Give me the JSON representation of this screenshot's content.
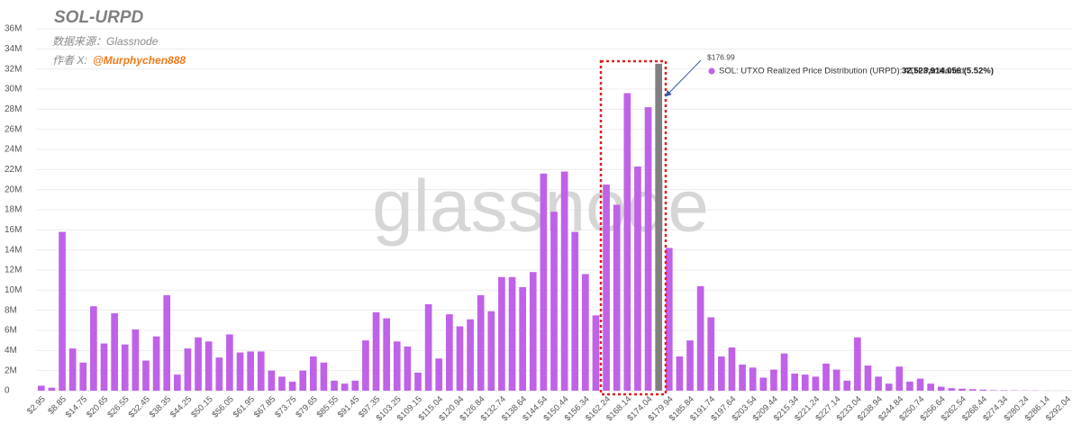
{
  "chart_data": {
    "type": "bar",
    "title": "SOL-URPD",
    "subtitle": "数据来源：Glassnode",
    "author_prefix": "作者 X:",
    "author_handle": "@Murphychen888",
    "watermark": "glassnode",
    "color": "#bf62e8",
    "highlight_color": "#808080",
    "grid": true,
    "ylim": [
      0,
      36000000
    ],
    "yticks": [
      0,
      {
        "value": 2000000,
        "label": "2M"
      },
      {
        "value": 4000000,
        "label": "4M"
      },
      {
        "value": 6000000,
        "label": "6M"
      },
      {
        "value": 8000000,
        "label": "8M"
      },
      {
        "value": 10000000,
        "label": "10M"
      },
      {
        "value": 12000000,
        "label": "12M"
      },
      {
        "value": 14000000,
        "label": "14M"
      },
      {
        "value": 16000000,
        "label": "16M"
      },
      {
        "value": 18000000,
        "label": "18M"
      },
      {
        "value": 20000000,
        "label": "20M"
      },
      {
        "value": 22000000,
        "label": "22M"
      },
      {
        "value": 24000000,
        "label": "24M"
      },
      {
        "value": 26000000,
        "label": "26M"
      },
      {
        "value": 28000000,
        "label": "28M"
      },
      {
        "value": 30000000,
        "label": "30M"
      },
      {
        "value": 32000000,
        "label": "32M"
      },
      {
        "value": 34000000,
        "label": "34M"
      },
      {
        "value": 36000000,
        "label": "36M"
      }
    ],
    "categories": [
      "$2.95",
      null,
      "$8.85",
      null,
      "$14.75",
      null,
      "$20.65",
      null,
      "$26.55",
      null,
      "$32.45",
      null,
      "$38.35",
      null,
      "$44.25",
      null,
      "$50.15",
      null,
      "$56.05",
      null,
      "$61.95",
      null,
      "$67.85",
      null,
      "$73.75",
      null,
      "$79.65",
      null,
      "$85.55",
      null,
      "$91.45",
      null,
      "$97.35",
      null,
      "$103.25",
      null,
      "$109.15",
      null,
      "$115.04",
      null,
      "$120.94",
      null,
      "$126.84",
      null,
      "$132.74",
      null,
      "$138.64",
      null,
      "$144.54",
      null,
      "$150.44",
      null,
      "$156.34",
      null,
      "$162.24",
      null,
      "$168.14",
      null,
      "$174.04",
      null,
      "$179.94",
      null,
      "$185.84",
      null,
      "$191.74",
      null,
      "$197.64",
      null,
      "$203.54",
      null,
      "$209.44",
      null,
      "$215.34",
      null,
      "$221.24",
      null,
      "$227.14",
      null,
      "$233.04",
      null,
      "$238.94",
      null,
      "$244.84",
      null,
      "$250.74",
      null,
      "$256.64",
      null,
      "$262.54",
      null,
      "$268.44",
      null,
      "$274.34",
      null,
      "$280.24",
      null,
      "$286.14",
      null,
      "$292.04"
    ],
    "values": [
      500000,
      300000,
      15800000,
      4200000,
      2800000,
      8400000,
      4700000,
      7700000,
      4600000,
      6100000,
      3000000,
      5400000,
      9500000,
      1600000,
      4200000,
      5300000,
      4900000,
      3300000,
      5600000,
      3800000,
      3900000,
      3900000,
      2000000,
      1400000,
      900000,
      2000000,
      3400000,
      2800000,
      1000000,
      700000,
      1000000,
      5000000,
      7800000,
      7200000,
      4900000,
      4400000,
      1800000,
      8600000,
      3200000,
      7600000,
      6400000,
      7100000,
      9500000,
      7900000,
      11300000,
      11300000,
      10300000,
      11800000,
      21600000,
      17800000,
      21800000,
      15800000,
      11600000,
      7500000,
      20500000,
      18500000,
      29600000,
      22300000,
      28200000,
      32523914.056,
      14200000,
      3400000,
      5000000,
      10400000,
      7300000,
      3400000,
      4300000,
      2600000,
      2300000,
      1300000,
      2100000,
      3700000,
      1700000,
      1600000,
      1400000,
      2700000,
      2100000,
      1000000,
      5300000,
      2500000,
      1400000,
      700000,
      2400000,
      900000,
      1200000,
      700000,
      400000,
      250000,
      200000,
      150000,
      100000,
      50000,
      50000,
      30000,
      20000,
      20000,
      10000,
      10000,
      10000
    ],
    "tooltip": {
      "label": "$176.99",
      "name": "SOL: UTXO Realized Price Distribution (URPD): ATH-Partitioned:",
      "value": 32523914.056,
      "value_label": "32,523,914.056 (5.52%)"
    }
  }
}
